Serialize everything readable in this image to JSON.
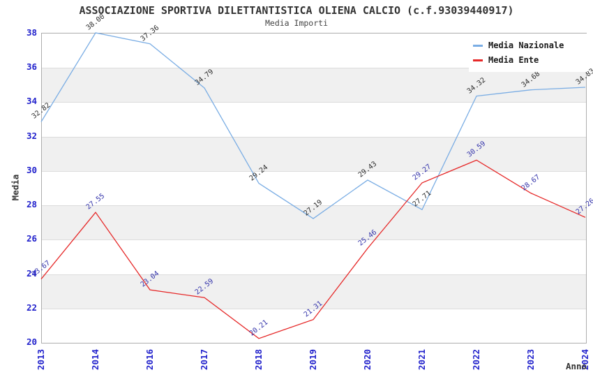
{
  "chart_data": {
    "type": "line",
    "title": "ASSOCIAZIONE SPORTIVA DILETTANTISTICA OLIENA CALCIO (c.f.93039440917)",
    "subtitle": "Media Importi",
    "xlabel": "Anno",
    "ylabel": "Media",
    "ylim": [
      20,
      38
    ],
    "ytick_step": 2,
    "grid": "horizontal-bands",
    "legend_position": "top-right",
    "band_colors": [
      "#ffffff",
      "#f0f0f0"
    ],
    "gridline_color": "#dcdcdc",
    "tick_label_color": "#2222cc",
    "categories": [
      "2013",
      "2014",
      "2016",
      "2017",
      "2018",
      "2019",
      "2020",
      "2021",
      "2022",
      "2023",
      "2024"
    ],
    "series": [
      {
        "name": "Media Nazionale",
        "color": "#7aade4",
        "label_color": "#2b2b2b",
        "values": [
          32.82,
          38.0,
          37.36,
          34.79,
          29.24,
          27.19,
          29.43,
          27.71,
          34.32,
          34.68,
          34.83
        ]
      },
      {
        "name": "Media Ente",
        "color": "#e62828",
        "label_color": "#3333aa",
        "values": [
          23.67,
          27.55,
          23.04,
          22.59,
          20.21,
          21.31,
          25.46,
          29.27,
          30.59,
          28.67,
          27.26
        ]
      }
    ]
  }
}
